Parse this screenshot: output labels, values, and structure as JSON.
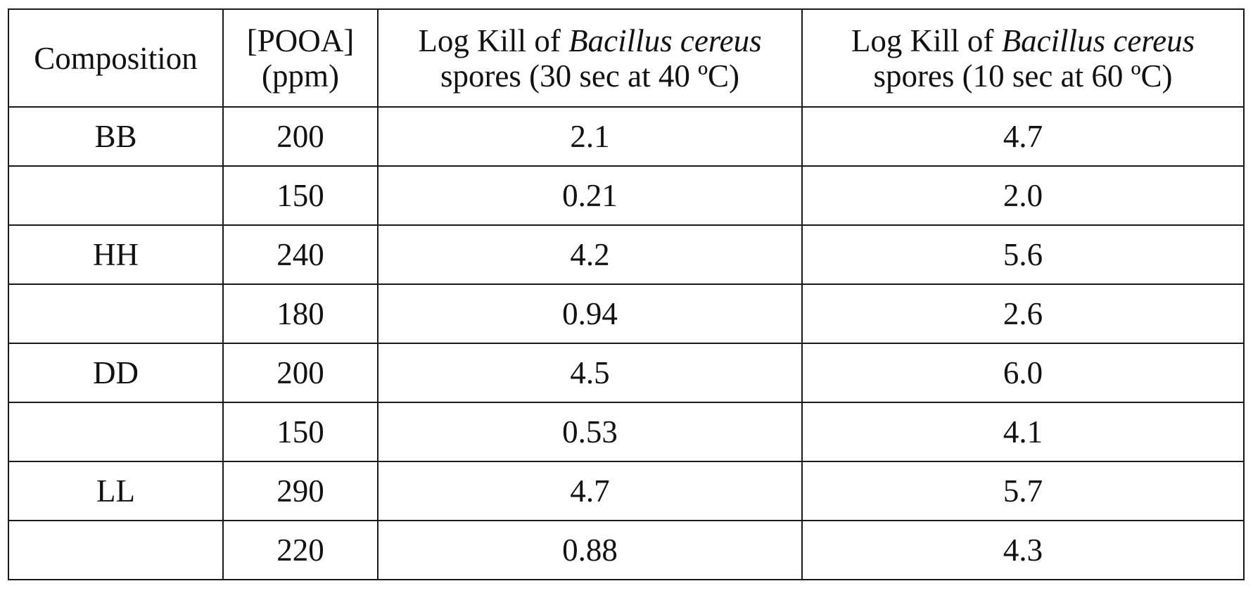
{
  "table": {
    "headers": {
      "composition": "Composition",
      "pooa_line1": "[POOA]",
      "pooa_line2": "(ppm)",
      "col3_pre": "Log Kill of ",
      "col3_italic": "Bacillus cereus",
      "col3_line2": "spores (30 sec at 40 ºC)",
      "col4_pre": "Log Kill of ",
      "col4_italic": "Bacillus cereus",
      "col4_line2": "spores (10 sec at 60 ºC)"
    },
    "rows": [
      {
        "composition": "BB",
        "pooa": "200",
        "kill_40": "2.1",
        "kill_60": "4.7"
      },
      {
        "composition": "",
        "pooa": "150",
        "kill_40": "0.21",
        "kill_60": "2.0"
      },
      {
        "composition": "HH",
        "pooa": "240",
        "kill_40": "4.2",
        "kill_60": "5.6"
      },
      {
        "composition": "",
        "pooa": "180",
        "kill_40": "0.94",
        "kill_60": "2.6"
      },
      {
        "composition": "DD",
        "pooa": "200",
        "kill_40": "4.5",
        "kill_60": "6.0"
      },
      {
        "composition": "",
        "pooa": "150",
        "kill_40": "0.53",
        "kill_60": "4.1"
      },
      {
        "composition": "LL",
        "pooa": "290",
        "kill_40": "4.7",
        "kill_60": "5.7"
      },
      {
        "composition": "",
        "pooa": "220",
        "kill_40": "0.88",
        "kill_60": "4.3"
      }
    ]
  }
}
